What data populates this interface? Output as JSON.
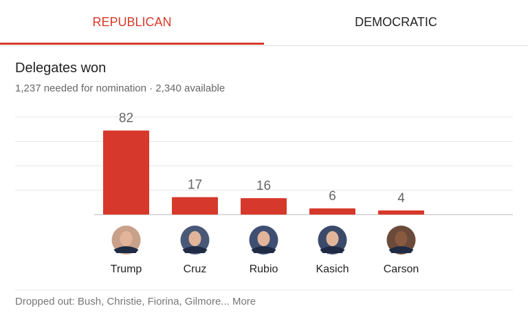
{
  "tabs": [
    {
      "label": "REPUBLICAN",
      "active": true
    },
    {
      "label": "DEMOCRATIC",
      "active": false
    }
  ],
  "header": {
    "title": "Delegates won",
    "subtitle": "1,237 needed for nomination · 2,340 available"
  },
  "colors": {
    "accent": "#d6392b",
    "bar": "#d6392b",
    "grid": "#e6e6e6",
    "label": "#666666"
  },
  "chart_data": {
    "type": "bar",
    "title": "Delegates won",
    "categories": [
      "Trump",
      "Cruz",
      "Rubio",
      "Kasich",
      "Carson"
    ],
    "values": [
      82,
      17,
      16,
      6,
      4
    ],
    "ylim": [
      0,
      100
    ],
    "grid": true,
    "xlabel": "",
    "ylabel": ""
  },
  "candidates": [
    {
      "name": "Trump",
      "avatar_icon": "trump-avatar-icon",
      "tone": "#c9a08a"
    },
    {
      "name": "Cruz",
      "avatar_icon": "cruz-avatar-icon",
      "tone": "#4a5878"
    },
    {
      "name": "Rubio",
      "avatar_icon": "rubio-avatar-icon",
      "tone": "#3d4f72"
    },
    {
      "name": "Kasich",
      "avatar_icon": "kasich-avatar-icon",
      "tone": "#3c4a6a"
    },
    {
      "name": "Carson",
      "avatar_icon": "carson-avatar-icon",
      "tone": "#6b4a3a"
    }
  ],
  "footer": {
    "dropped_label": "Dropped out: Bush, Christie, Fiorina, Gilmore...",
    "more_label": "More"
  }
}
